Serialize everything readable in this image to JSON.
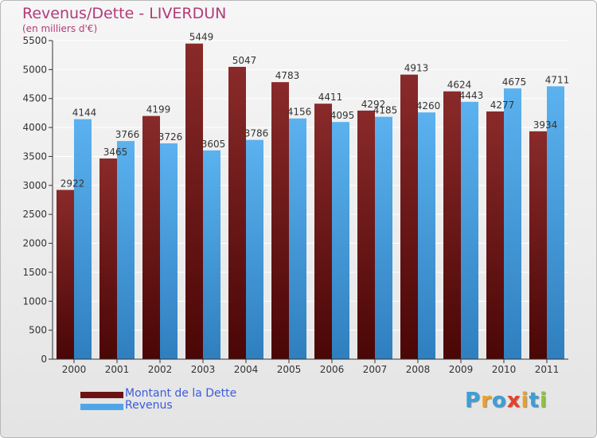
{
  "header": {
    "title": "Revenus/Dette - LIVERDUN",
    "subtitle": "(en milliers d'€)"
  },
  "chart_data": {
    "type": "bar",
    "categories": [
      "2000",
      "2001",
      "2002",
      "2003",
      "2004",
      "2005",
      "2006",
      "2007",
      "2008",
      "2009",
      "2010",
      "2011"
    ],
    "series": [
      {
        "name": "Montant de la Dette",
        "color": "#7a1e1e",
        "values": [
          2922,
          3465,
          4199,
          5449,
          5047,
          4783,
          4411,
          4292,
          4913,
          4624,
          4277,
          3934
        ]
      },
      {
        "name": "Revenus",
        "color": "#4ea6e8",
        "values": [
          4144,
          3766,
          3726,
          3605,
          3786,
          4156,
          4095,
          4185,
          4260,
          4443,
          4675,
          4711
        ]
      }
    ],
    "ylim": [
      0,
      5500
    ],
    "yticks": [
      0,
      500,
      1000,
      1500,
      2000,
      2500,
      3000,
      3500,
      4000,
      4500,
      5000,
      5500
    ],
    "grid": true,
    "legend_position": "bottom-left"
  },
  "legend": {
    "items": [
      {
        "label": "Montant de la Dette",
        "color": "#6b1414"
      },
      {
        "label": "Revenus",
        "color": "#4ea6e8"
      }
    ]
  },
  "logo": {
    "letters": [
      "P",
      "r",
      "o",
      "x",
      "i",
      "t",
      "i"
    ],
    "colors": [
      "#3b9fd8",
      "#f0a020",
      "#3b9fd8",
      "#e8402a",
      "#f0a020",
      "#3b9fd8",
      "#8fc43a"
    ]
  }
}
